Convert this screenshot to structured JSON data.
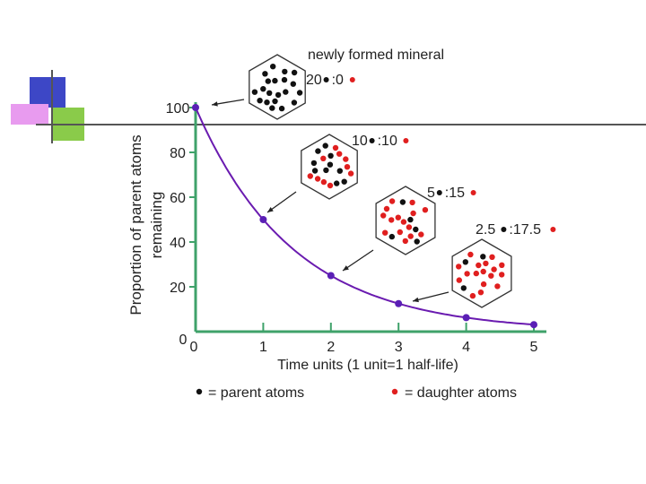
{
  "chart_data": {
    "type": "line",
    "ylabel": "Proportion of parent atoms",
    "ylabel2": "remaining",
    "xlabel": "Time units (1 unit=1 half-life)",
    "x": [
      0,
      1,
      2,
      3,
      4,
      5
    ],
    "values": [
      100,
      50,
      25,
      12.5,
      6.25,
      3.125
    ],
    "xlim": [
      0,
      5
    ],
    "ylim": [
      0,
      100
    ],
    "yticks": [
      0,
      20,
      40,
      60,
      80,
      100
    ],
    "xticks": [
      0,
      1,
      2,
      3,
      4,
      5
    ],
    "yzero_label": "0",
    "xzero_label": "0",
    "annotations": [
      {
        "label": "newly formed mineral",
        "ratio_parent": "20",
        "ratio_daughter": ":0",
        "points_to_x": 0
      },
      {
        "label": "",
        "ratio_parent": "10",
        "ratio_daughter": ":10",
        "points_to_x": 1
      },
      {
        "label": "",
        "ratio_parent": "5",
        "ratio_daughter": ":15",
        "points_to_x": 2
      },
      {
        "label": "",
        "ratio_parent": "2.5",
        "ratio_daughter": ":17.5",
        "points_to_x": 3
      }
    ],
    "legend": [
      {
        "symbol": "parent",
        "text": "= parent atoms"
      },
      {
        "symbol": "daughter",
        "text": "= daughter atoms"
      }
    ]
  },
  "colors": {
    "curve": "#6a1bb0",
    "marker": "#5a1fb5",
    "axis": "#3fa26a",
    "parent": "#111111",
    "daughter": "#e01f1f",
    "deco_blue": "#3d47c6",
    "deco_pink": "#e89bef",
    "deco_green": "#8acb4a",
    "deco_line": "#555555"
  }
}
